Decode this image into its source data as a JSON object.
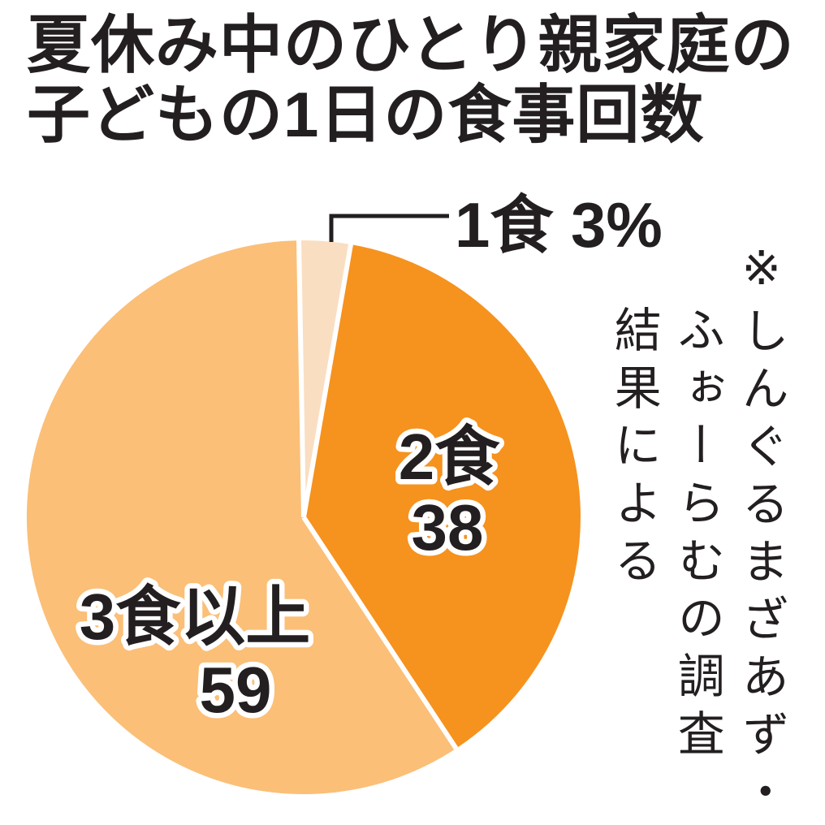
{
  "page": {
    "background_color": "#ffffff",
    "text_color": "#231f20"
  },
  "title": {
    "text": "夏休み中のひとり親家庭の子どもの1日の食事回数",
    "line1": "夏休み中のひとり親家庭の",
    "line2": "子どもの1日の食事回数"
  },
  "chart_data": {
    "type": "pie",
    "title": "夏休み中のひとり親家庭の子どもの1日の食事回数",
    "unit": "%",
    "labels": [
      "1食",
      "2食",
      "3食以上"
    ],
    "values": [
      3,
      38,
      59
    ],
    "colors": [
      "#fadec1",
      "#f6921e",
      "#fbbf77"
    ],
    "start_angle_deg": -1,
    "clockwise": true,
    "separator_color": "#ffffff",
    "label_color": "#231f20",
    "label_outline_color": "#ffffff",
    "leader_line_color": "#231f20",
    "legend_position": "none",
    "grid": false
  },
  "note": {
    "text": "※しんぐるまざあず・ふぉーらむの調査結果による",
    "cols": [
      "※しんぐるまざあず・",
      "ふぉーらむの調査",
      "結果による"
    ]
  }
}
